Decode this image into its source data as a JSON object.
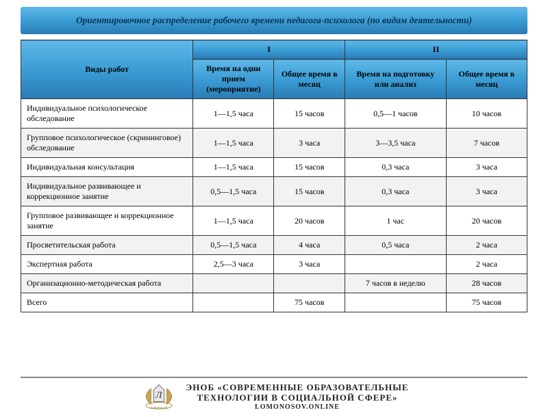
{
  "title": "Ориентировочное распределение рабочего времени педагога-психолога (по видам деятельности)",
  "columns": {
    "name": "Виды работ",
    "group1": "I",
    "group2": "II",
    "c1": "Время на один прием (мероприятие)",
    "c2": "Общее время в месяц",
    "c3": "Время на подготовку или анализ",
    "c4": "Общее время в месяц"
  },
  "rows": [
    {
      "name": "Индивидуальное психологическое обследование",
      "c1": "1—1,5 часа",
      "c2": "15 часов",
      "c3": "0,5—1 часов",
      "c4": "10 часов"
    },
    {
      "name": "Групповое психологическое (скрининговое) обследование",
      "c1": "1—1,5 часа",
      "c2": "3 часа",
      "c3": "3—3,5 часа",
      "c4": "7 часов"
    },
    {
      "name": "Индивидуальная консультация",
      "c1": "1—1,5 часа",
      "c2": "15 часов",
      "c3": "0,3 часа",
      "c4": "3 часа"
    },
    {
      "name": "Индивидуальное развивающее и коррекционное занятие",
      "c1": "0,5—1,5 часа",
      "c2": "15 часов",
      "c3": "0,3 часа",
      "c4": "3 часа"
    },
    {
      "name": "Групповое развивающее и коррекционное занятие",
      "c1": "1—1,5 часа",
      "c2": "20 часов",
      "c3": "1 час",
      "c4": "20 часов"
    },
    {
      "name": "Просветительская работа",
      "c1": "0,5—1,5 часа",
      "c2": "4 часа",
      "c3": "0,5 часа",
      "c4": "2 часа"
    },
    {
      "name": "Экспертная работа",
      "c1": "2,5—3 часа",
      "c2": "3 часа",
      "c3": "",
      "c4": "2 часа"
    },
    {
      "name": "Организационно-методическая работа",
      "c1": "",
      "c2": "",
      "c3": "7 часов в неделю",
      "c4": "28 часов"
    },
    {
      "name": "Всего",
      "c1": "",
      "c2": "75 часов",
      "c3": "",
      "c4": "75 часов"
    }
  ],
  "footer": {
    "line1": "ЭНОБ «СОВРЕМЕННЫЕ ОБРАЗОВАТЕЛЬНЫЕ",
    "line2": "ТЕХНОЛОГИИ В СОЦИАЛЬНОЙ СФЕРЕ»",
    "line3": "LOMONOSOV.ONLINE",
    "logo_label": "ЛОМОНОСОВ"
  },
  "style": {
    "col_widths": [
      "34%",
      "16%",
      "14%",
      "20%",
      "16%"
    ],
    "header_gradient": [
      "#5fb8e8",
      "#3b9dd4",
      "#2a7bb5"
    ],
    "alt_row_bg": "#f2f2f2",
    "border_color": "#333333"
  }
}
